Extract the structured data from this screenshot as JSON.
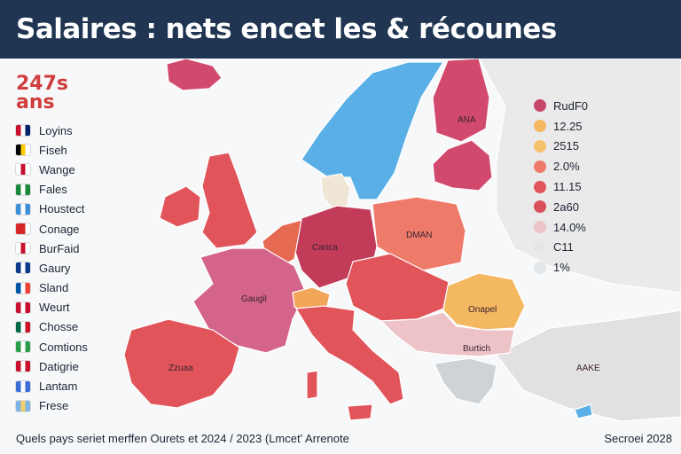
{
  "header": {
    "title": "Salaires : nets encet les & récounes"
  },
  "left_panel": {
    "age_label": "247s ans",
    "countries": [
      {
        "label": "Loyins",
        "flag_colors": [
          "#c8102e",
          "#ffffff",
          "#012169"
        ]
      },
      {
        "label": "Fiseh",
        "flag_colors": [
          "#000000",
          "#ffcc00",
          "#ffffff"
        ]
      },
      {
        "label": "Wange",
        "flag_colors": [
          "#ffffff",
          "#c8102e",
          "#ffffff"
        ]
      },
      {
        "label": "Fales",
        "flag_colors": [
          "#1a8a3a",
          "#ffffff",
          "#1a8a3a"
        ]
      },
      {
        "label": "Houstect",
        "flag_colors": [
          "#3a8fd6",
          "#ffffff",
          "#3a8fd6"
        ]
      },
      {
        "label": "Conage",
        "flag_colors": [
          "#d62828",
          "#d62828",
          "#ffffff"
        ]
      },
      {
        "label": "BurFaid",
        "flag_colors": [
          "#ffffff",
          "#c8102e",
          "#ffffff"
        ]
      },
      {
        "label": "Gaury",
        "flag_colors": [
          "#0a3a8a",
          "#ffffff",
          "#0a3a8a"
        ]
      },
      {
        "label": "Sland",
        "flag_colors": [
          "#0055a4",
          "#ffffff",
          "#ef4135"
        ]
      },
      {
        "label": "Weurt",
        "flag_colors": [
          "#c8102e",
          "#ffffff",
          "#c8102e"
        ]
      },
      {
        "label": "Chosse",
        "flag_colors": [
          "#006847",
          "#ffffff",
          "#ce1126"
        ]
      },
      {
        "label": "Comtions",
        "flag_colors": [
          "#2a9d4a",
          "#ffffff",
          "#2a9d4a"
        ]
      },
      {
        "label": "Datigrie",
        "flag_colors": [
          "#c8102e",
          "#ffffff",
          "#c8102e"
        ]
      },
      {
        "label": "Lantam",
        "flag_colors": [
          "#3a6fd6",
          "#ffffff",
          "#3a6fd6"
        ]
      },
      {
        "label": "Frese",
        "flag_colors": [
          "#7fb3e6",
          "#f2d16b",
          "#7fb3e6"
        ]
      }
    ]
  },
  "legend": {
    "items": [
      {
        "label": "RudF0",
        "color": "#c8456a"
      },
      {
        "label": "12.25",
        "color": "#f4b860"
      },
      {
        "label": "2515",
        "color": "#f6c36d"
      },
      {
        "label": "2.0%",
        "color": "#ee7b6a"
      },
      {
        "label": "11.15",
        "color": "#e0545a"
      },
      {
        "label": "2a60",
        "color": "#d94f5c"
      },
      {
        "label": "14.0%",
        "color": "#eec3c8"
      },
      {
        "label": "C11",
        "color": "#e6e6e6"
      },
      {
        "label": "1%",
        "color": "#e3e6e8"
      }
    ]
  },
  "map": {
    "regions": [
      {
        "id": "iceland",
        "label": "",
        "color": "#d14a6e"
      },
      {
        "id": "scandinavia",
        "label": "",
        "color": "#5ab0e6"
      },
      {
        "id": "finland",
        "label": "",
        "color": "#d14a6e"
      },
      {
        "id": "uk",
        "label": "",
        "color": "#e0545a"
      },
      {
        "id": "ireland",
        "label": "",
        "color": "#e0545a"
      },
      {
        "id": "france",
        "label": "",
        "color": "#d5648a"
      },
      {
        "id": "iberia",
        "label": "",
        "color": "#e0545a"
      },
      {
        "id": "germany",
        "label": "",
        "color": "#c23c5a"
      },
      {
        "id": "benelux",
        "label": "",
        "color": "#e66a52"
      },
      {
        "id": "switzerland",
        "label": "",
        "color": "#f2a65a"
      },
      {
        "id": "italy",
        "label": "",
        "color": "#e0545a"
      },
      {
        "id": "poland",
        "label": "",
        "color": "#ee7b6a"
      },
      {
        "id": "baltics",
        "label": "",
        "color": "#d14a6e"
      },
      {
        "id": "central",
        "label": "",
        "color": "#e0545a"
      },
      {
        "id": "romania",
        "label": "",
        "color": "#f4b860"
      },
      {
        "id": "balkans",
        "label": "",
        "color": "#eec3c8"
      },
      {
        "id": "greece",
        "label": "",
        "color": "#cfd3d6"
      },
      {
        "id": "turkey",
        "label": "",
        "color": "#e1e1e1"
      },
      {
        "id": "russia",
        "label": "",
        "color": "#eaeaea"
      },
      {
        "id": "denmark",
        "label": "",
        "color": "#efe6d6"
      }
    ],
    "labels": [
      {
        "text": "ANA",
        "region": "finland"
      },
      {
        "text": "DMAN",
        "region": "poland"
      },
      {
        "text": "Carica",
        "region": "germany"
      },
      {
        "text": "Gaugil",
        "region": "france"
      },
      {
        "text": "Zzuaa",
        "region": "iberia"
      },
      {
        "text": "Onapel",
        "region": "romania"
      },
      {
        "text": "Burtich",
        "region": "balkans"
      },
      {
        "text": "AAKE",
        "region": "turkey"
      }
    ]
  },
  "footer": {
    "question": "Quels pays seriet merffen Ourets et 2024 / 2023 (Lmcet' Arrenote",
    "source": "Secroei 2028"
  }
}
